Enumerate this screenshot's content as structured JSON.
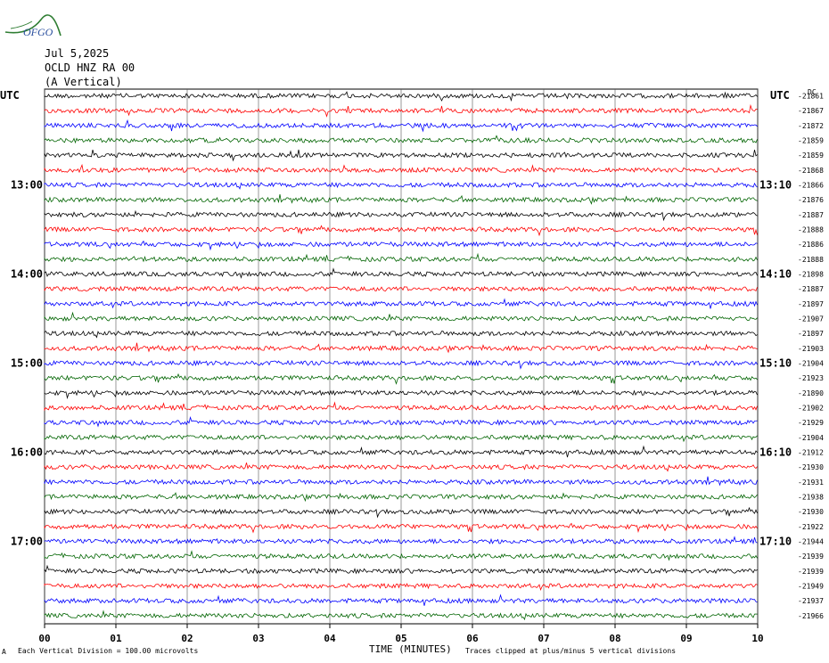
{
  "logo": {
    "text": "OFGO",
    "color": "#2a4f9e",
    "swoosh_color": "#2e7d32"
  },
  "header": {
    "date": "Jul 5,2025",
    "station": "OCLD HNZ RA 00",
    "component": "(A Vertical)"
  },
  "utc_left": "UTC",
  "utc_right": "UTC",
  "dc_label": "DC",
  "footer": {
    "scale_note": "Each Vertical Division = 100.00 microvolts",
    "clip_note": "Traces clipped at plus/minus 5 vertical divisions",
    "corner_mark": "A"
  },
  "chart_data": {
    "type": "line",
    "title": "",
    "xlabel": "TIME (MINUTES)",
    "ylabel": "",
    "x_ticks": [
      "00",
      "01",
      "02",
      "03",
      "04",
      "05",
      "06",
      "07",
      "08",
      "09",
      "10"
    ],
    "xlim": [
      0,
      10
    ],
    "trace_count": 36,
    "trace_colors": [
      "#000000",
      "#ff0000",
      "#0000ff",
      "#006400"
    ],
    "left_hour_labels": [
      {
        "trace": 6,
        "label": "13:00"
      },
      {
        "trace": 12,
        "label": "14:00"
      },
      {
        "trace": 18,
        "label": "15:00"
      },
      {
        "trace": 24,
        "label": "16:00"
      },
      {
        "trace": 30,
        "label": "17:00"
      }
    ],
    "right_hour_labels": [
      {
        "trace": 6,
        "label": "13:10"
      },
      {
        "trace": 12,
        "label": "14:10"
      },
      {
        "trace": 18,
        "label": "15:10"
      },
      {
        "trace": 24,
        "label": "16:10"
      },
      {
        "trace": 30,
        "label": "17:10"
      }
    ],
    "dc_offsets": [
      "-21861",
      "-21867",
      "-21872",
      "-21859",
      "-21859",
      "-21868",
      "-21866",
      "-21876",
      "-21887",
      "-21888",
      "-21886",
      "-21888",
      "-21898",
      "-21887",
      "-21897",
      "-21907",
      "-21897",
      "-21903",
      "-21904",
      "-21923",
      "-21890",
      "-21902",
      "-21929",
      "-21904",
      "-21912",
      "-21930",
      "-21931",
      "-21938",
      "-21930",
      "-21922",
      "-21944",
      "-21939",
      "-21939",
      "-21949",
      "-21937",
      "-21966"
    ]
  }
}
